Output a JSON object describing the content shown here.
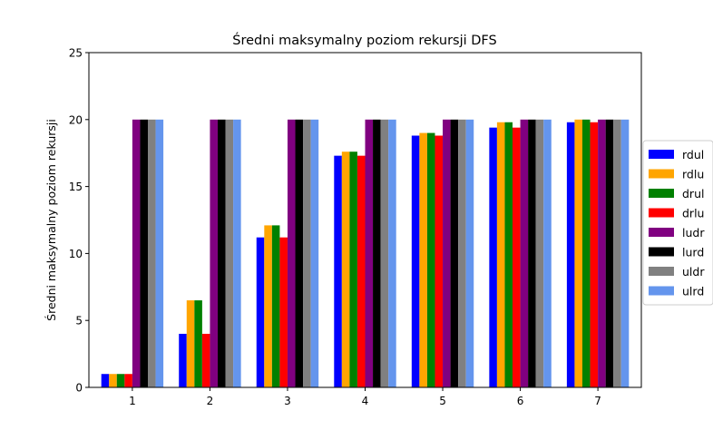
{
  "chart_data": {
    "type": "bar",
    "title": "Średni maksymalny poziom rekursji DFS",
    "xlabel": "",
    "ylabel": "Średni maksymalny poziom rekursji",
    "ylim": [
      0,
      25
    ],
    "yticks": [
      0,
      5,
      10,
      15,
      20,
      25
    ],
    "grid": false,
    "legend_position": "center-right outside",
    "categories": [
      "1",
      "2",
      "3",
      "4",
      "5",
      "6",
      "7"
    ],
    "series": [
      {
        "name": "rdul",
        "color": "#0000ff",
        "values": [
          1,
          4,
          11.2,
          17.3,
          18.8,
          19.4,
          19.8
        ]
      },
      {
        "name": "rdlu",
        "color": "#ffa500",
        "values": [
          1,
          6.5,
          12.1,
          17.6,
          19.0,
          19.8,
          20
        ]
      },
      {
        "name": "drul",
        "color": "#008000",
        "values": [
          1,
          6.5,
          12.1,
          17.6,
          19.0,
          19.8,
          20
        ]
      },
      {
        "name": "drlu",
        "color": "#ff0000",
        "values": [
          1,
          4,
          11.2,
          17.3,
          18.8,
          19.4,
          19.8
        ]
      },
      {
        "name": "ludr",
        "color": "#800080",
        "values": [
          20,
          20,
          20,
          20,
          20,
          20,
          20
        ]
      },
      {
        "name": "lurd",
        "color": "#000000",
        "values": [
          20,
          20,
          20,
          20,
          20,
          20,
          20
        ]
      },
      {
        "name": "uldr",
        "color": "#808080",
        "values": [
          20,
          20,
          20,
          20,
          20,
          20,
          20
        ]
      },
      {
        "name": "ulrd",
        "color": "#6495ed",
        "values": [
          20,
          20,
          20,
          20,
          20,
          20,
          20
        ]
      }
    ]
  }
}
